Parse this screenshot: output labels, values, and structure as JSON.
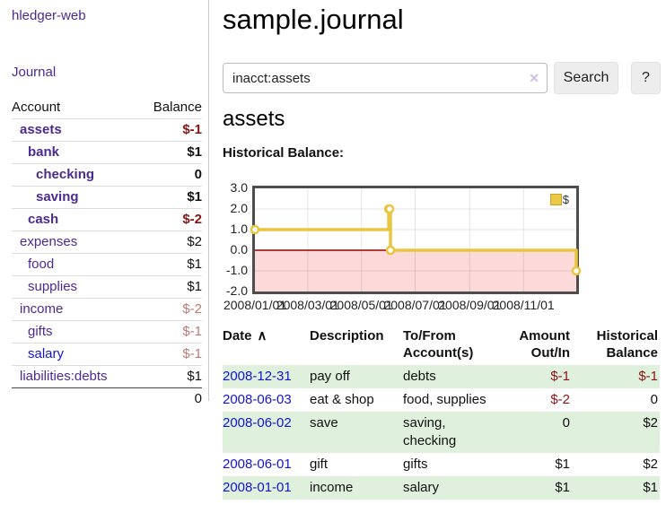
{
  "sidebar": {
    "brand": "hledger-web",
    "journal_label": "Journal",
    "accounts_table": {
      "account_header": "Account",
      "balance_header": "Balance",
      "rows": [
        {
          "name": "assets",
          "balance": "$-1",
          "level": 1,
          "bold": true,
          "name_color": "purple",
          "balance_color": "negative"
        },
        {
          "name": "bank",
          "balance": "$1",
          "level": 2,
          "bold": true,
          "name_color": "purple",
          "balance_color": "black"
        },
        {
          "name": "checking",
          "balance": "0",
          "level": 3,
          "bold": true,
          "name_color": "purple",
          "balance_color": "black"
        },
        {
          "name": "saving",
          "balance": "$1",
          "level": 3,
          "bold": true,
          "name_color": "purple",
          "balance_color": "black"
        },
        {
          "name": "cash",
          "balance": "$-2",
          "level": 2,
          "bold": true,
          "name_color": "purple",
          "balance_color": "negative"
        },
        {
          "name": "expenses",
          "balance": "$2",
          "level": 1,
          "bold": false,
          "name_color": "purple",
          "balance_color": "black"
        },
        {
          "name": "food",
          "balance": "$1",
          "level": 2,
          "bold": false,
          "name_color": "purple",
          "balance_color": "black"
        },
        {
          "name": "supplies",
          "balance": "$1",
          "level": 2,
          "bold": false,
          "name_color": "purple",
          "balance_color": "black"
        },
        {
          "name": "income",
          "balance": "$-2",
          "level": 1,
          "bold": false,
          "name_color": "purple",
          "balance_color": "soft-negative"
        },
        {
          "name": "gifts",
          "balance": "$-1",
          "level": 2,
          "bold": false,
          "name_color": "purple",
          "balance_color": "soft-negative"
        },
        {
          "name": "salary",
          "balance": "$-1",
          "level": 2,
          "bold": false,
          "name_color": "blue",
          "balance_color": "soft-negative"
        },
        {
          "name": "liabilities:debts",
          "balance": "$1",
          "level": 1,
          "bold": false,
          "name_color": "purple",
          "balance_color": "black"
        }
      ],
      "total": "0"
    }
  },
  "main": {
    "title": "sample.journal",
    "search": {
      "value": "inacct:assets",
      "clear_icon": "✕",
      "button_label": "Search",
      "help_label": "?"
    },
    "account_heading": "assets",
    "chart_label": "Historical Balance:"
  },
  "chart_data": {
    "type": "line",
    "step": true,
    "title": "Historical Balance",
    "legend": [
      "$"
    ],
    "x": [
      "2008-01-01",
      "2008-06-01",
      "2008-06-02",
      "2008-06-03",
      "2008-12-31"
    ],
    "values": [
      1,
      2,
      2,
      0,
      -1
    ],
    "ylim": [
      -2,
      3
    ],
    "yticks": [
      "3.0",
      "2.0",
      "1.0",
      "0.0",
      "-1.0",
      "-2.0"
    ],
    "xticks": [
      "2008/01/01",
      "2008/03/01",
      "2008/05/01",
      "2008/07/01",
      "2008/09/01",
      "2008/11/01"
    ],
    "line_color": "#e9c63f",
    "marker_fill": "#ffffff",
    "negative_region_color": "#fcdada",
    "zero_line_color": "#990000",
    "grid_on": true,
    "legend_position": "top-right"
  },
  "register": {
    "sort_icon": "∧",
    "headers": [
      {
        "label": "Date",
        "align": "left",
        "sorted": true
      },
      {
        "label": "Description",
        "align": "left"
      },
      {
        "label": "To/From Account(s)",
        "align": "left"
      },
      {
        "label": "Amount Out/In",
        "align": "right"
      },
      {
        "label": "Historical Balance",
        "align": "right"
      }
    ],
    "rows": [
      {
        "date": "2008-12-31",
        "description": "pay off",
        "accounts": "debts",
        "amount": "$-1",
        "amount_negative": true,
        "balance": "$-1",
        "balance_negative": true
      },
      {
        "date": "2008-06-03",
        "description": "eat & shop",
        "accounts": "food, supplies",
        "amount": "$-2",
        "amount_negative": true,
        "balance": "0",
        "balance_negative": false
      },
      {
        "date": "2008-06-02",
        "description": "save",
        "accounts": "saving, checking",
        "amount": "0",
        "amount_negative": false,
        "balance": "$2",
        "balance_negative": false
      },
      {
        "date": "2008-06-01",
        "description": "gift",
        "accounts": "gifts",
        "amount": "$1",
        "amount_negative": false,
        "balance": "$2",
        "balance_negative": false
      },
      {
        "date": "2008-01-01",
        "description": "income",
        "accounts": "salary",
        "amount": "$1",
        "amount_negative": false,
        "balance": "$1",
        "balance_negative": false
      }
    ]
  }
}
